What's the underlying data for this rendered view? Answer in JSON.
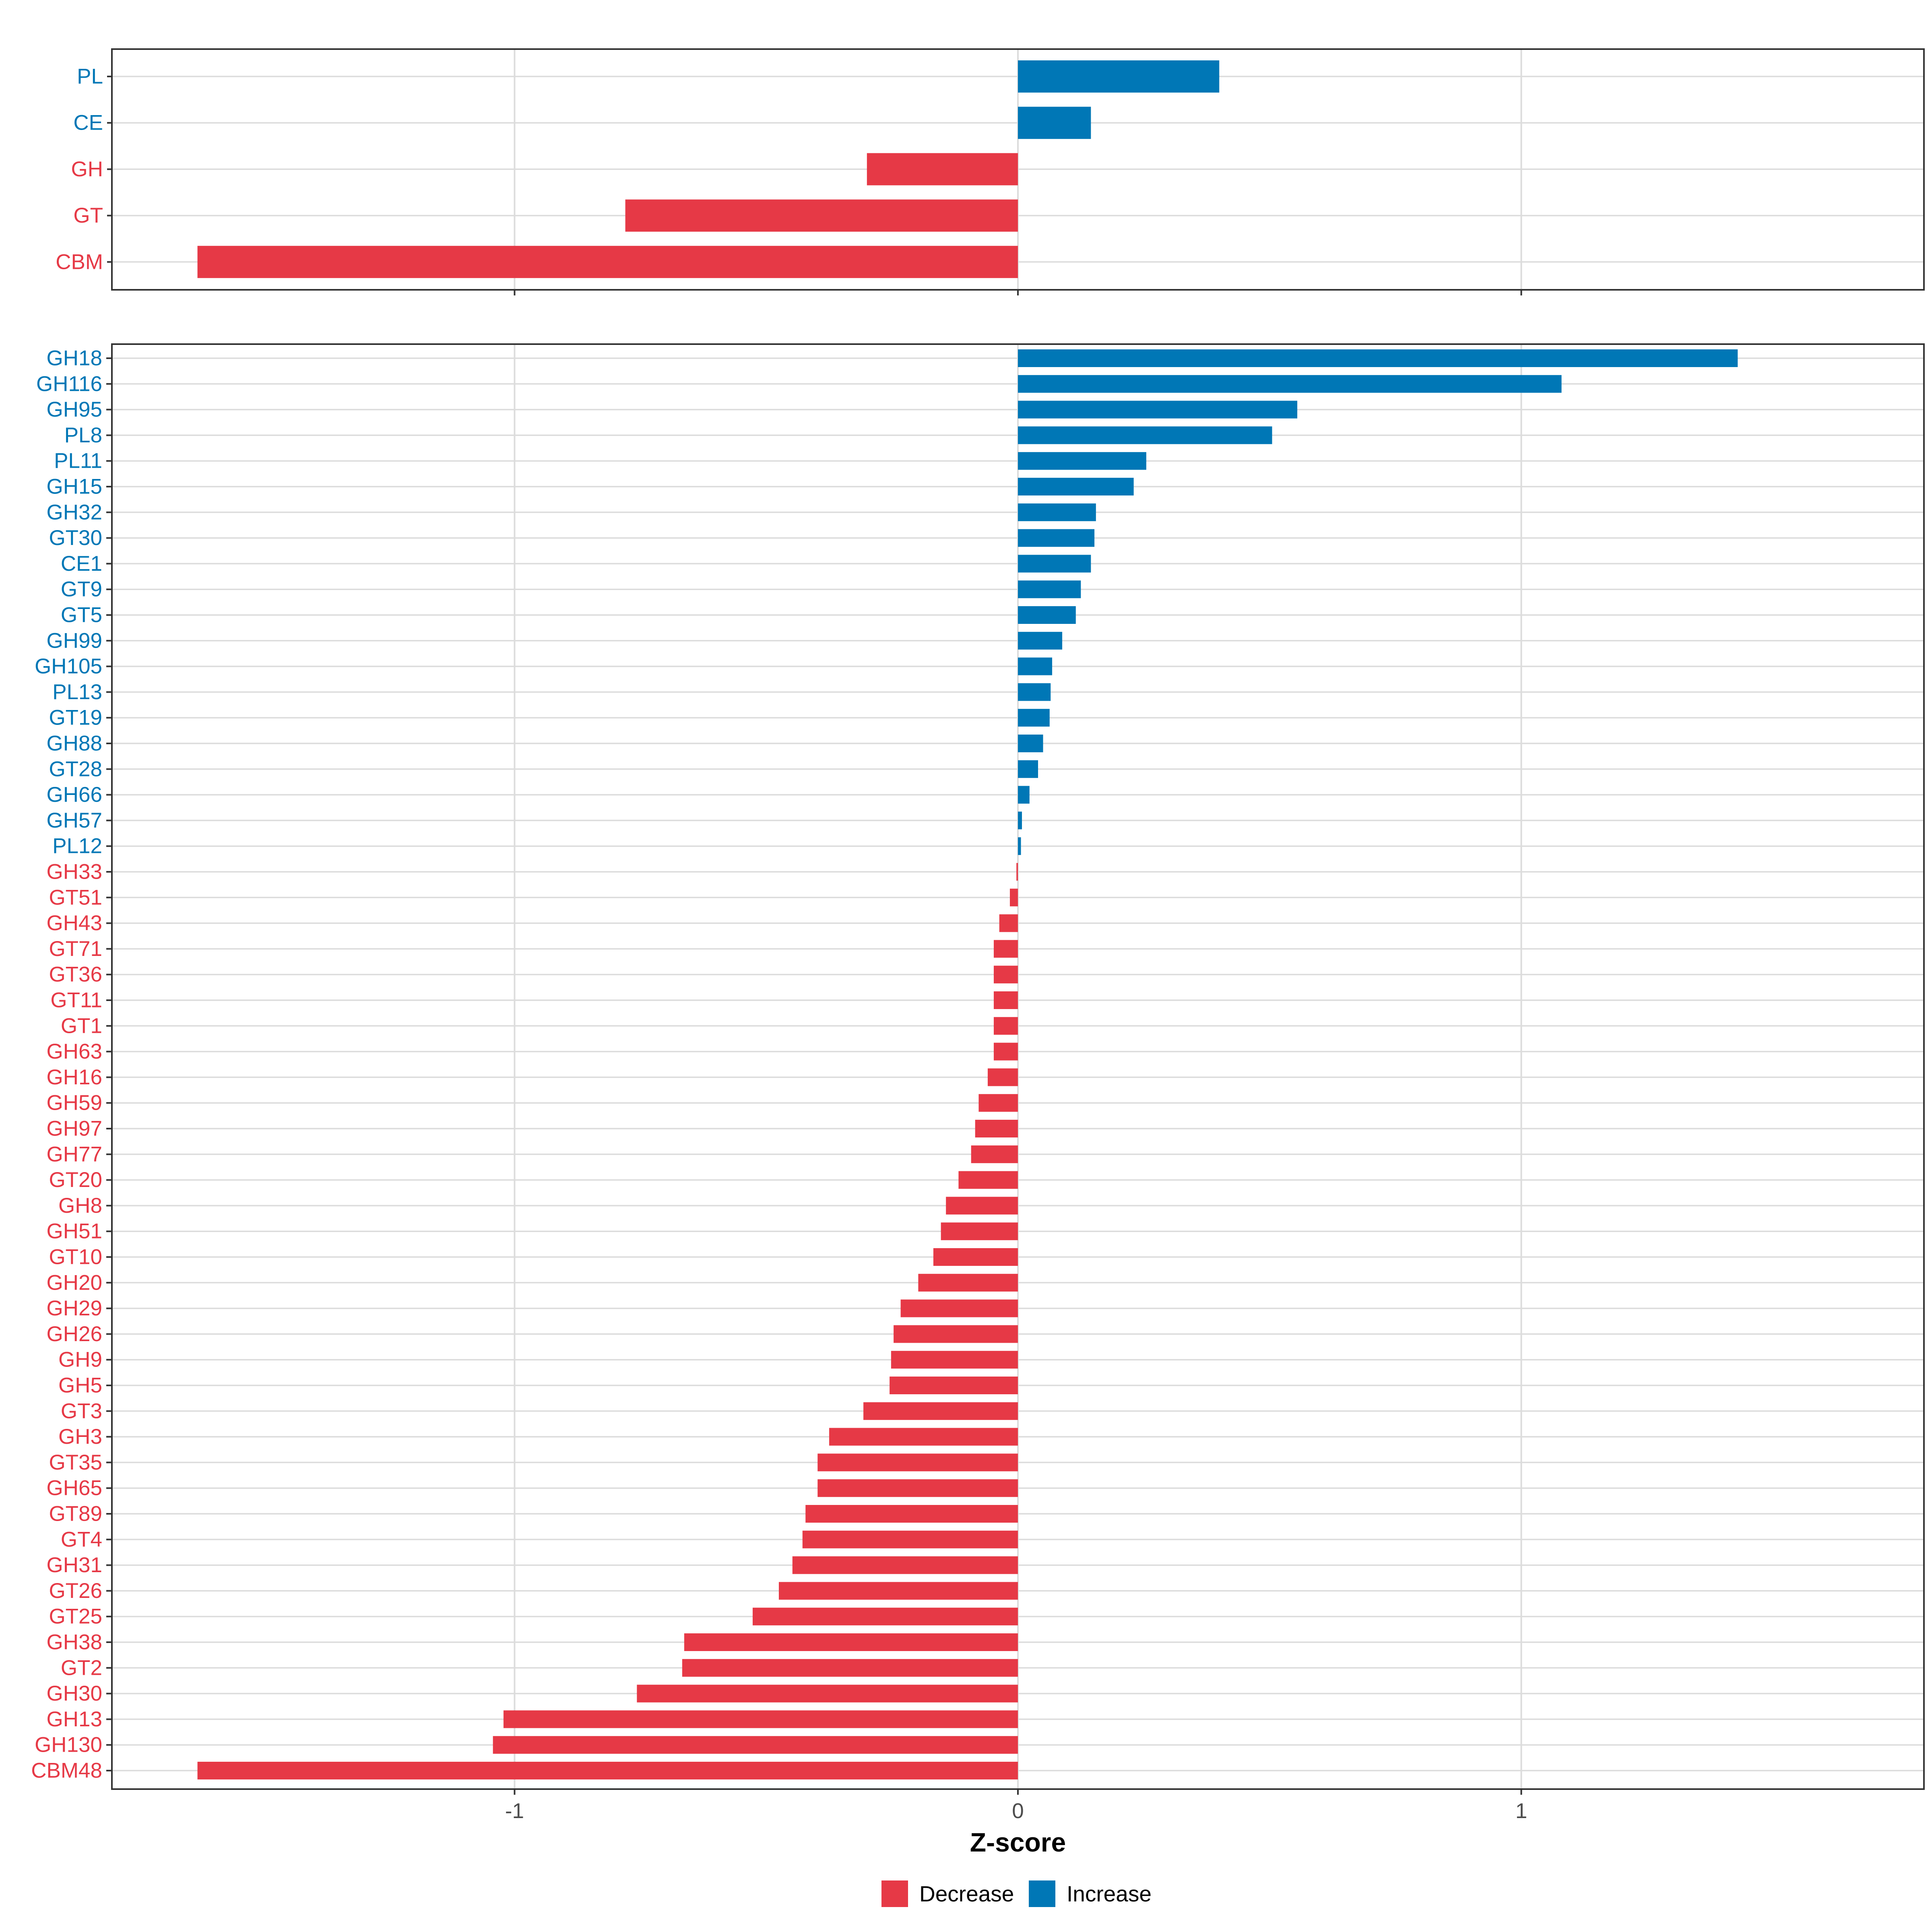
{
  "colors": {
    "decrease": "#E63946",
    "increase": "#0077B6",
    "grid": "#dcdcdc",
    "panel_border": "#333333"
  },
  "legend": {
    "position": "bottom",
    "items": [
      {
        "label": "Decrease",
        "color_key": "decrease"
      },
      {
        "label": "Increase",
        "color_key": "increase"
      }
    ]
  },
  "chart_data": [
    {
      "type": "bar",
      "orientation": "horizontal",
      "xlim": [
        -1.8,
        1.8
      ],
      "xticks": [
        -1,
        0,
        1
      ],
      "xtick_labels": [
        "-1",
        "0",
        "1"
      ],
      "xlabel": "",
      "categories": [
        "PL",
        "CE",
        "GH",
        "GT",
        "CBM"
      ],
      "values": [
        0.4,
        0.145,
        -0.3,
        -0.78,
        -1.63
      ],
      "grid": true
    },
    {
      "type": "bar",
      "orientation": "horizontal",
      "xlim": [
        -1.8,
        1.8
      ],
      "xticks": [
        -1,
        0,
        1
      ],
      "xtick_labels": [
        "-1",
        "0",
        "1"
      ],
      "xlabel": "Z-score",
      "categories": [
        "GH18",
        "GH116",
        "GH95",
        "PL8",
        "PL11",
        "GH15",
        "GH32",
        "GT30",
        "CE1",
        "GT9",
        "GT5",
        "GH99",
        "GH105",
        "PL13",
        "GT19",
        "GH88",
        "GT28",
        "GH66",
        "GH57",
        "PL12",
        "GH33",
        "GT51",
        "GH43",
        "GT71",
        "GT36",
        "GT11",
        "GT1",
        "GH63",
        "GH16",
        "GH59",
        "GH97",
        "GH77",
        "GT20",
        "GH8",
        "GH51",
        "GT10",
        "GH20",
        "GH29",
        "GH26",
        "GH9",
        "GH5",
        "GT3",
        "GH3",
        "GT35",
        "GH65",
        "GT89",
        "GT4",
        "GH31",
        "GT26",
        "GT25",
        "GH38",
        "GT2",
        "GH30",
        "GH13",
        "GH130",
        "CBM48"
      ],
      "values": [
        1.43,
        1.08,
        0.555,
        0.505,
        0.255,
        0.23,
        0.155,
        0.152,
        0.145,
        0.125,
        0.115,
        0.088,
        0.068,
        0.065,
        0.063,
        0.05,
        0.04,
        0.023,
        0.008,
        0.006,
        -0.003,
        -0.016,
        -0.037,
        -0.048,
        -0.048,
        -0.048,
        -0.048,
        -0.048,
        -0.06,
        -0.078,
        -0.085,
        -0.093,
        -0.118,
        -0.143,
        -0.153,
        -0.168,
        -0.198,
        -0.233,
        -0.247,
        -0.252,
        -0.255,
        -0.307,
        -0.375,
        -0.398,
        -0.398,
        -0.422,
        -0.428,
        -0.448,
        -0.475,
        -0.527,
        -0.663,
        -0.667,
        -0.757,
        -1.022,
        -1.043,
        -1.63
      ],
      "grid": true
    }
  ]
}
